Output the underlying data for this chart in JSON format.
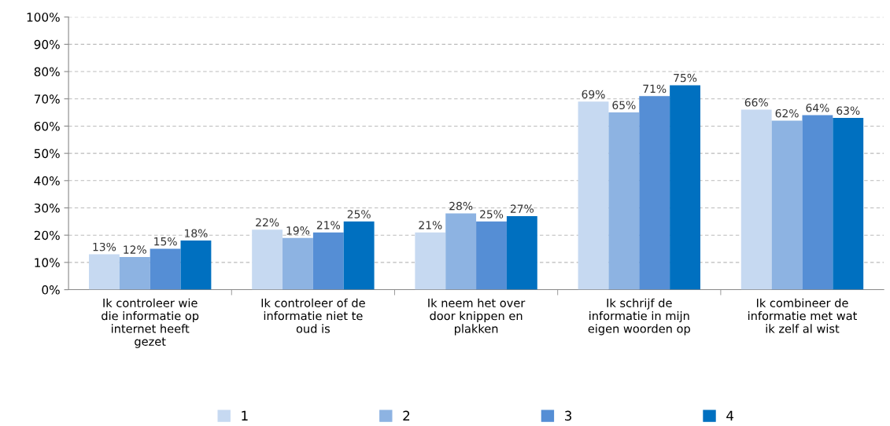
{
  "chart_data": {
    "type": "bar",
    "categories": [
      "Ik controleer wie\ndie informatie op\ninternet heeft\ngezet",
      "Ik controleer of de\ninformatie niet te\noud is",
      "Ik neem het over\ndoor knippen en\nplakken",
      "Ik schrijf de\ninformatie in mijn\neigen woorden op",
      "Ik combineer de\ninformatie met wat\nik zelf al wist"
    ],
    "series": [
      {
        "name": "1",
        "color": "#c6d9f1",
        "values": [
          13,
          22,
          21,
          69,
          66
        ],
        "value_labels": [
          "13%",
          "22%",
          "21%",
          "69%",
          "66%"
        ]
      },
      {
        "name": "2",
        "color": "#8db3e2",
        "values": [
          12,
          19,
          28,
          65,
          62
        ],
        "value_labels": [
          "12%",
          "19%",
          "28%",
          "65%",
          "62%"
        ]
      },
      {
        "name": "3",
        "color": "#558ed5",
        "values": [
          15,
          21,
          25,
          71,
          64
        ],
        "value_labels": [
          "15%",
          "21%",
          "25%",
          "71%",
          "64%"
        ]
      },
      {
        "name": "4",
        "color": "#0070c0",
        "values": [
          18,
          25,
          27,
          75,
          63
        ],
        "value_labels": [
          "18%",
          "25%",
          "27%",
          "75%",
          "63%"
        ]
      }
    ],
    "ylim": [
      0,
      100
    ],
    "yticks": [
      {
        "value": 0,
        "label": "0%"
      },
      {
        "value": 10,
        "label": "10%"
      },
      {
        "value": 20,
        "label": "20%"
      },
      {
        "value": 30,
        "label": "30%"
      },
      {
        "value": 40,
        "label": "40%"
      },
      {
        "value": 50,
        "label": "50%"
      },
      {
        "value": 60,
        "label": "60%"
      },
      {
        "value": 70,
        "label": "70%"
      },
      {
        "value": 80,
        "label": "80%"
      },
      {
        "value": 90,
        "label": "90%"
      },
      {
        "value": 100,
        "label": "100%"
      }
    ],
    "grid": "y",
    "legend": "bottom"
  }
}
